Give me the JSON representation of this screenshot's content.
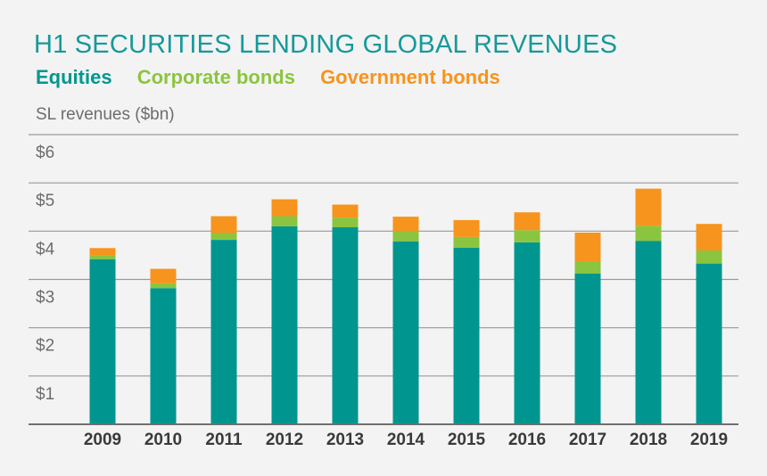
{
  "chart_data": {
    "type": "bar",
    "stacked": true,
    "title": "H1 SECURITIES LENDING GLOBAL REVENUES",
    "ylabel": "SL revenues ($bn)",
    "xlabel": "",
    "ylim": [
      0,
      6
    ],
    "yticks": [
      {
        "value": 1,
        "label": "$1"
      },
      {
        "value": 2,
        "label": "$2"
      },
      {
        "value": 3,
        "label": "$3"
      },
      {
        "value": 4,
        "label": "$4"
      },
      {
        "value": 5,
        "label": "$5"
      },
      {
        "value": 6,
        "label": "$6"
      }
    ],
    "categories": [
      "2009",
      "2010",
      "2011",
      "2012",
      "2013",
      "2014",
      "2015",
      "2016",
      "2017",
      "2018",
      "2019"
    ],
    "series": [
      {
        "name": "Equities",
        "color": "#00968f",
        "values": [
          3.42,
          2.82,
          3.82,
          4.1,
          4.08,
          3.79,
          3.66,
          3.77,
          3.12,
          3.8,
          3.33
        ]
      },
      {
        "name": "Corporate bonds",
        "color": "#8bc53f",
        "values": [
          0.08,
          0.1,
          0.14,
          0.21,
          0.2,
          0.21,
          0.22,
          0.25,
          0.25,
          0.31,
          0.27
        ]
      },
      {
        "name": "Government bonds",
        "color": "#f7941d",
        "values": [
          0.15,
          0.3,
          0.35,
          0.35,
          0.27,
          0.3,
          0.35,
          0.37,
          0.6,
          0.77,
          0.55
        ]
      }
    ],
    "legend_position": "top-left",
    "grid": true
  }
}
